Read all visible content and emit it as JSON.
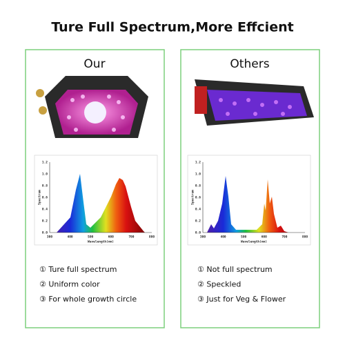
{
  "title": "Ture Full Spectrum,More Effcient",
  "panels": [
    {
      "heading": "Our",
      "chart": {
        "y_label": "Spectrum",
        "x_label": "Wavelength(nm)",
        "yticks": [
          "0.0",
          "0.2",
          "0.4",
          "0.6",
          "0.8",
          "1.0",
          "1.2"
        ],
        "xticks": [
          "300",
          "400",
          "500",
          "600",
          "700",
          "800"
        ]
      },
      "points": [
        "① Ture full spectrum",
        "② Uniform color",
        "③ For whole growth circle"
      ]
    },
    {
      "heading": "Others",
      "chart": {
        "y_label": "Spectrum",
        "x_label": "Wavelength(nm)",
        "yticks": [
          "0.0",
          "0.2",
          "0.4",
          "0.6",
          "0.8",
          "1.0",
          "1.2"
        ],
        "xticks": [
          "300",
          "400",
          "500",
          "600",
          "700",
          "800"
        ]
      },
      "points": [
        "① Not full spectrum",
        "② Speckled",
        "③ Just for Veg & Flower"
      ]
    }
  ]
}
